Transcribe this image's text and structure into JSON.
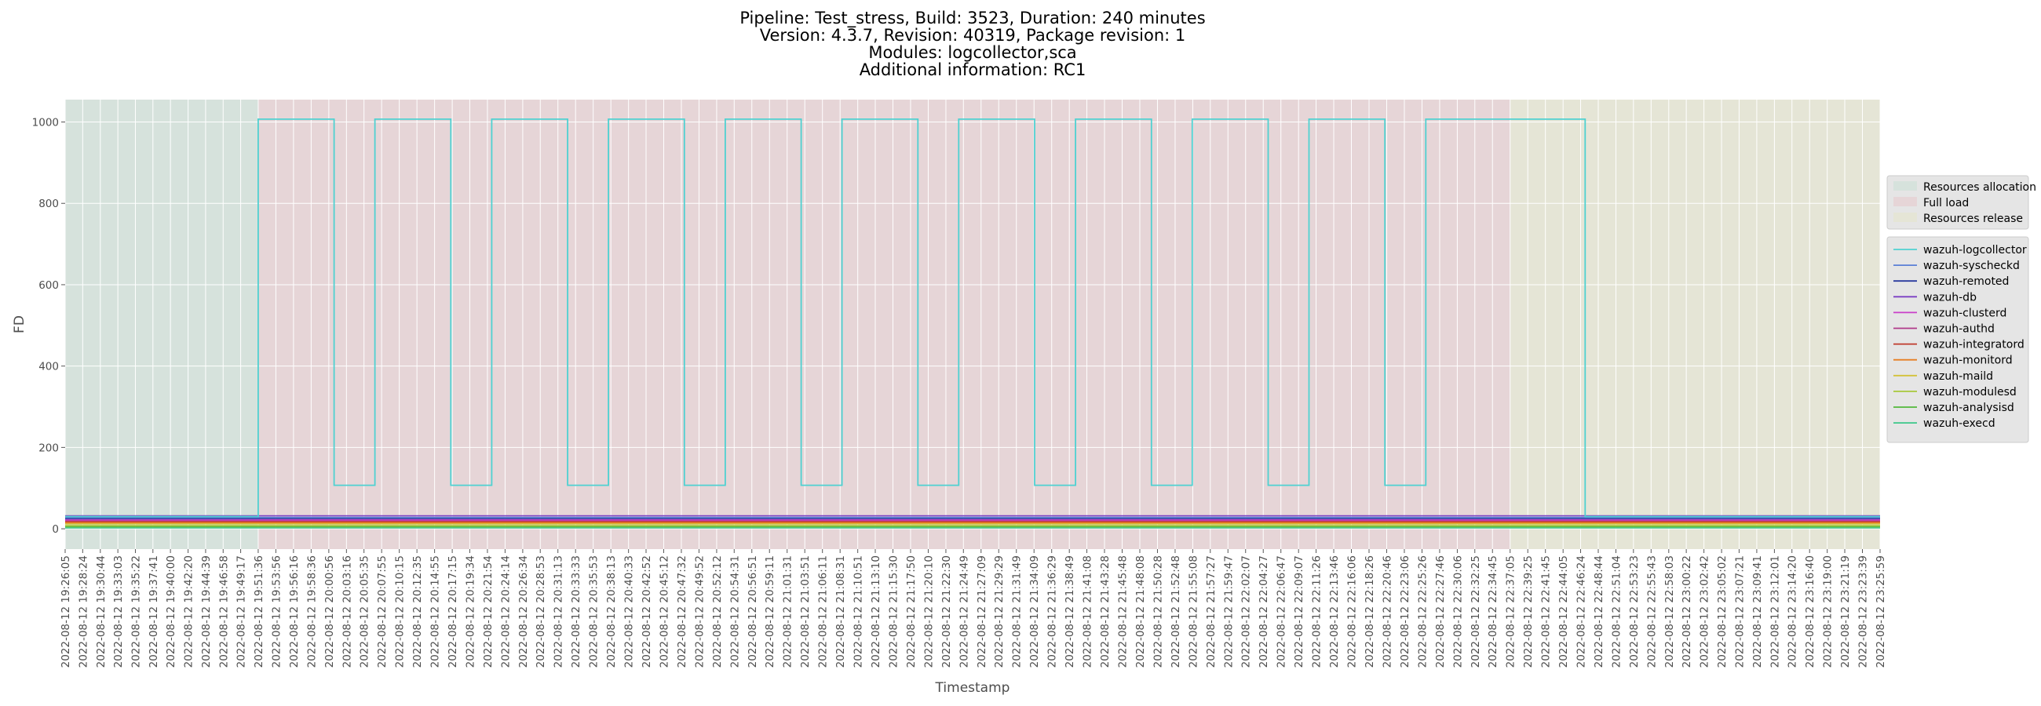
{
  "chart_data": {
    "type": "line",
    "title": [
      "Pipeline: Test_stress, Build: 3523, Duration: 240 minutes",
      "Version: 4.3.7, Revision: 40319, Package revision: 1",
      "Modules: logcollector,sca",
      "Additional information: RC1"
    ],
    "xlabel": "Timestamp",
    "ylabel": "FD",
    "ylim": [
      -50,
      1055
    ],
    "yticks": [
      0,
      200,
      400,
      600,
      800,
      1000
    ],
    "grid": true,
    "style": "ggplot",
    "x_labels": [
      "2022-08-12 19:26:05",
      "2022-08-12 19:28:24",
      "2022-08-12 19:30:44",
      "2022-08-12 19:33:03",
      "2022-08-12 19:35:22",
      "2022-08-12 19:37:41",
      "2022-08-12 19:40:00",
      "2022-08-12 19:42:20",
      "2022-08-12 19:44:39",
      "2022-08-12 19:46:58",
      "2022-08-12 19:49:17",
      "2022-08-12 19:51:36",
      "2022-08-12 19:53:56",
      "2022-08-12 19:56:16",
      "2022-08-12 19:58:36",
      "2022-08-12 20:00:56",
      "2022-08-12 20:03:16",
      "2022-08-12 20:05:35",
      "2022-08-12 20:07:55",
      "2022-08-12 20:10:15",
      "2022-08-12 20:12:35",
      "2022-08-12 20:14:55",
      "2022-08-12 20:17:15",
      "2022-08-12 20:19:34",
      "2022-08-12 20:21:54",
      "2022-08-12 20:24:14",
      "2022-08-12 20:26:34",
      "2022-08-12 20:28:53",
      "2022-08-12 20:31:13",
      "2022-08-12 20:33:33",
      "2022-08-12 20:35:53",
      "2022-08-12 20:38:13",
      "2022-08-12 20:40:33",
      "2022-08-12 20:42:52",
      "2022-08-12 20:45:12",
      "2022-08-12 20:47:32",
      "2022-08-12 20:49:52",
      "2022-08-12 20:52:12",
      "2022-08-12 20:54:31",
      "2022-08-12 20:56:51",
      "2022-08-12 20:59:11",
      "2022-08-12 21:01:31",
      "2022-08-12 21:03:51",
      "2022-08-12 21:06:11",
      "2022-08-12 21:08:31",
      "2022-08-12 21:10:51",
      "2022-08-12 21:13:10",
      "2022-08-12 21:15:30",
      "2022-08-12 21:17:50",
      "2022-08-12 21:20:10",
      "2022-08-12 21:22:30",
      "2022-08-12 21:24:49",
      "2022-08-12 21:27:09",
      "2022-08-12 21:29:29",
      "2022-08-12 21:31:49",
      "2022-08-12 21:34:09",
      "2022-08-12 21:36:29",
      "2022-08-12 21:38:49",
      "2022-08-12 21:41:08",
      "2022-08-12 21:43:28",
      "2022-08-12 21:45:48",
      "2022-08-12 21:48:08",
      "2022-08-12 21:50:28",
      "2022-08-12 21:52:48",
      "2022-08-12 21:55:08",
      "2022-08-12 21:57:27",
      "2022-08-12 21:59:47",
      "2022-08-12 22:02:07",
      "2022-08-12 22:04:27",
      "2022-08-12 22:06:47",
      "2022-08-12 22:09:07",
      "2022-08-12 22:11:26",
      "2022-08-12 22:13:46",
      "2022-08-12 22:16:06",
      "2022-08-12 22:18:26",
      "2022-08-12 22:20:46",
      "2022-08-12 22:23:06",
      "2022-08-12 22:25:26",
      "2022-08-12 22:27:46",
      "2022-08-12 22:30:06",
      "2022-08-12 22:32:25",
      "2022-08-12 22:34:45",
      "2022-08-12 22:37:05",
      "2022-08-12 22:39:25",
      "2022-08-12 22:41:45",
      "2022-08-12 22:44:05",
      "2022-08-12 22:46:24",
      "2022-08-12 22:48:44",
      "2022-08-12 22:51:04",
      "2022-08-12 22:53:23",
      "2022-08-12 22:55:43",
      "2022-08-12 22:58:03",
      "2022-08-12 23:00:22",
      "2022-08-12 23:02:42",
      "2022-08-12 23:05:02",
      "2022-08-12 23:07:21",
      "2022-08-12 23:09:41",
      "2022-08-12 23:12:01",
      "2022-08-12 23:14:20",
      "2022-08-12 23:16:40",
      "2022-08-12 23:19:00",
      "2022-08-12 23:21:19",
      "2022-08-12 23:23:39",
      "2022-08-12 23:25:59"
    ],
    "phases": [
      {
        "name": "Resources allocation",
        "start": "2022-08-12 19:26:05",
        "end": "2022-08-12 19:51:36",
        "color": "#d6e2dc"
      },
      {
        "name": "Full load",
        "start": "2022-08-12 19:51:36",
        "end": "2022-08-12 22:37:05",
        "color": "#e6d5d7"
      },
      {
        "name": "Resources release",
        "start": "2022-08-12 22:37:05",
        "end": "2022-08-12 23:25:59",
        "color": "#e5e5d6"
      }
    ],
    "series": [
      {
        "name": "wazuh-logcollector",
        "color": "#4fd1d1",
        "step_points": [
          [
            "2022-08-12 19:26:05",
            30
          ],
          [
            "2022-08-12 19:51:36",
            30
          ],
          [
            "2022-08-12 19:51:36",
            1007
          ],
          [
            "2022-08-12 20:01:38",
            1007
          ],
          [
            "2022-08-12 20:01:38",
            107
          ],
          [
            "2022-08-12 20:07:02",
            107
          ],
          [
            "2022-08-12 20:07:02",
            1007
          ],
          [
            "2022-08-12 20:17:04",
            1007
          ],
          [
            "2022-08-12 20:17:04",
            107
          ],
          [
            "2022-08-12 20:22:28",
            107
          ],
          [
            "2022-08-12 20:22:28",
            1007
          ],
          [
            "2022-08-12 20:32:30",
            1007
          ],
          [
            "2022-08-12 20:32:30",
            107
          ],
          [
            "2022-08-12 20:37:54",
            107
          ],
          [
            "2022-08-12 20:37:54",
            1007
          ],
          [
            "2022-08-12 20:47:56",
            1007
          ],
          [
            "2022-08-12 20:47:56",
            107
          ],
          [
            "2022-08-12 20:53:20",
            107
          ],
          [
            "2022-08-12 20:53:20",
            1007
          ],
          [
            "2022-08-12 21:03:22",
            1007
          ],
          [
            "2022-08-12 21:03:22",
            107
          ],
          [
            "2022-08-12 21:08:46",
            107
          ],
          [
            "2022-08-12 21:08:46",
            1007
          ],
          [
            "2022-08-12 21:18:48",
            1007
          ],
          [
            "2022-08-12 21:18:48",
            107
          ],
          [
            "2022-08-12 21:24:12",
            107
          ],
          [
            "2022-08-12 21:24:12",
            1007
          ],
          [
            "2022-08-12 21:34:14",
            1007
          ],
          [
            "2022-08-12 21:34:14",
            107
          ],
          [
            "2022-08-12 21:39:38",
            107
          ],
          [
            "2022-08-12 21:39:38",
            1007
          ],
          [
            "2022-08-12 21:49:40",
            1007
          ],
          [
            "2022-08-12 21:49:40",
            107
          ],
          [
            "2022-08-12 21:55:04",
            107
          ],
          [
            "2022-08-12 21:55:04",
            1007
          ],
          [
            "2022-08-12 22:05:06",
            1007
          ],
          [
            "2022-08-12 22:05:06",
            107
          ],
          [
            "2022-08-12 22:10:30",
            107
          ],
          [
            "2022-08-12 22:10:30",
            1007
          ],
          [
            "2022-08-12 22:20:32",
            1007
          ],
          [
            "2022-08-12 22:20:32",
            107
          ],
          [
            "2022-08-12 22:25:56",
            107
          ],
          [
            "2022-08-12 22:25:56",
            1007
          ],
          [
            "2022-08-12 22:36:00",
            1007
          ],
          [
            "2022-08-12 22:36:00",
            1007
          ],
          [
            "2022-08-12 22:47:00",
            1007
          ],
          [
            "2022-08-12 22:47:00",
            30
          ],
          [
            "2022-08-12 23:25:59",
            30
          ]
        ]
      },
      {
        "name": "wazuh-syscheckd",
        "color": "#5a7fd6",
        "level": 28
      },
      {
        "name": "wazuh-remoted",
        "color": "#2a3a9e",
        "level": 25
      },
      {
        "name": "wazuh-db",
        "color": "#7b3fc4",
        "level": 32
      },
      {
        "name": "wazuh-clusterd",
        "color": "#c93fc9",
        "level": 22
      },
      {
        "name": "wazuh-authd",
        "color": "#b03a8a",
        "level": 20
      },
      {
        "name": "wazuh-integratord",
        "color": "#c0392b",
        "level": 18
      },
      {
        "name": "wazuh-monitord",
        "color": "#e67e22",
        "level": 15
      },
      {
        "name": "wazuh-maild",
        "color": "#d4c23a",
        "level": 12
      },
      {
        "name": "wazuh-modulesd",
        "color": "#a8c83a",
        "level": 8
      },
      {
        "name": "wazuh-analysisd",
        "color": "#52b83a",
        "level": 5
      },
      {
        "name": "wazuh-execd",
        "color": "#3ac88a",
        "level": 2
      }
    ]
  }
}
